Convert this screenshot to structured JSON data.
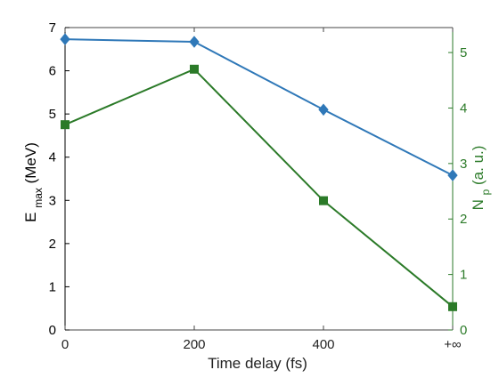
{
  "chart_data": {
    "type": "line",
    "xlabel": "Time delay (fs)",
    "ylabel_left": {
      "main": "E",
      "sub": "max",
      "unit": " (MeV)"
    },
    "ylabel_right": {
      "main": "N",
      "sub": "p",
      "unit": " (a. u.)"
    },
    "x_ticks": [
      "0",
      "200",
      "400",
      "+∞"
    ],
    "y_left_ticks": [
      "0",
      "1",
      "2",
      "3",
      "4",
      "5",
      "6",
      "7"
    ],
    "y_right_ticks": [
      "0",
      "1",
      "2",
      "3",
      "4",
      "5"
    ],
    "y_left_lim": [
      0,
      7
    ],
    "y_right_lim": [
      0,
      5.45
    ],
    "series": [
      {
        "axis": "left",
        "marker": "diamond",
        "color": "#2f78b8",
        "values": [
          6.73,
          6.67,
          5.1,
          3.58
        ]
      },
      {
        "axis": "right",
        "marker": "square",
        "color": "#2b7a28",
        "values": [
          3.7,
          4.7,
          2.33,
          0.42
        ]
      }
    ],
    "colors": {
      "left_axis": "#000000",
      "right_axis": "#2b7a28",
      "blue_series": "#2f78b8",
      "green_series": "#2b7a28"
    }
  }
}
